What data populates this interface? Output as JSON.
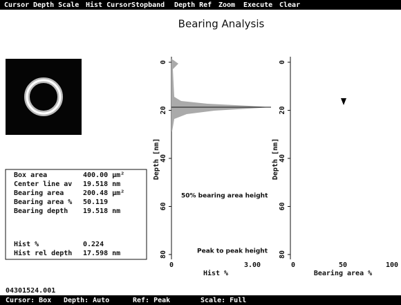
{
  "menu": [
    "Cursor",
    "Depth Scale",
    "Hist Cursor",
    "Stopband",
    "Depth Ref",
    "Zoom",
    "Execute",
    "Clear"
  ],
  "title": "Bearing Analysis",
  "info_box": {
    "rows": [
      [
        "Box area",
        "400.00 µm²"
      ],
      [
        "Center line av",
        "19.518 nm"
      ],
      [
        "Bearing area",
        "200.48 µm²"
      ],
      [
        "Bearing area %",
        "50.119"
      ],
      [
        "Bearing depth",
        "19.518 nm"
      ],
      [
        "Hist %",
        "0.224"
      ],
      [
        "Hist rel depth",
        "17.598 nm"
      ]
    ]
  },
  "histogram_plot": {
    "y_label": "Depth [nm]",
    "y_ticks": [
      "0",
      "20",
      "40",
      "60",
      "80"
    ],
    "x_label": "Hist %",
    "x_ticks": [
      "0",
      "3.00"
    ],
    "annotations": [
      "50% bearing area height",
      "Peak to peak height"
    ]
  },
  "bearing_plot": {
    "y_label": "Depth [nm]",
    "y_ticks": [
      "0",
      "20",
      "40",
      "60",
      "80"
    ],
    "x_label": "Bearing area %",
    "x_ticks": [
      "0",
      "50",
      "100"
    ]
  },
  "filename": "04301524.001",
  "status": [
    "Cursor: Box",
    "Depth: Auto",
    "Ref: Peak",
    "Scale: Full"
  ]
}
